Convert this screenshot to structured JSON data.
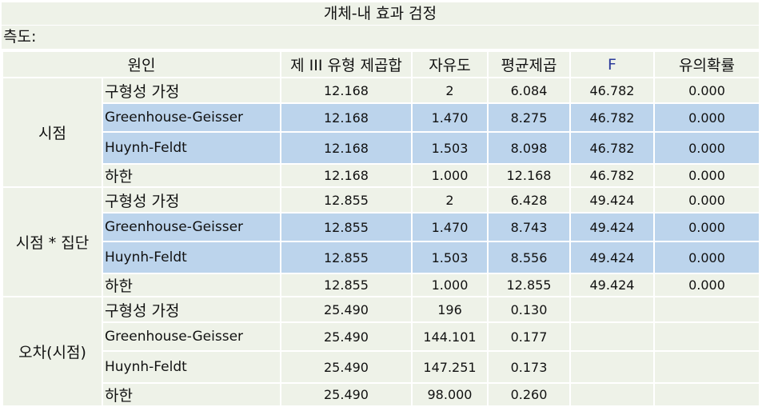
{
  "title": "개체-내 효과 검정",
  "measure_label": "측도:",
  "headers": [
    "원인",
    "제 III 유형 제곱합",
    "자유도",
    "평균제곱",
    "F",
    "유의확률"
  ],
  "groups": [
    {
      "name": "시점",
      "rows": [
        {
          "effect": "구형성 가정",
          "ss": "12.168",
          "df": "2",
          "ms": "6.084",
          "f": "46.782",
          "sig": "0.000",
          "highlight": false,
          "script": "ko"
        },
        {
          "effect": "Greenhouse-Geisser",
          "ss": "12.168",
          "df": "1.470",
          "ms": "8.275",
          "f": "46.782",
          "sig": "0.000",
          "highlight": true,
          "script": "latin"
        },
        {
          "effect": "Huynh-Feldt",
          "ss": "12.168",
          "df": "1.503",
          "ms": "8.098",
          "f": "46.782",
          "sig": "0.000",
          "highlight": true,
          "script": "latin"
        },
        {
          "effect": "하한",
          "ss": "12.168",
          "df": "1.000",
          "ms": "12.168",
          "f": "46.782",
          "sig": "0.000",
          "highlight": false,
          "script": "ko"
        }
      ]
    },
    {
      "name": "시점 * 집단",
      "rows": [
        {
          "effect": "구형성 가정",
          "ss": "12.855",
          "df": "2",
          "ms": "6.428",
          "f": "49.424",
          "sig": "0.000",
          "highlight": false,
          "script": "ko"
        },
        {
          "effect": "Greenhouse-Geisser",
          "ss": "12.855",
          "df": "1.470",
          "ms": "8.743",
          "f": "49.424",
          "sig": "0.000",
          "highlight": true,
          "script": "latin"
        },
        {
          "effect": "Huynh-Feldt",
          "ss": "12.855",
          "df": "1.503",
          "ms": "8.556",
          "f": "49.424",
          "sig": "0.000",
          "highlight": true,
          "script": "latin"
        },
        {
          "effect": "하한",
          "ss": "12.855",
          "df": "1.000",
          "ms": "12.855",
          "f": "49.424",
          "sig": "0.000",
          "highlight": false,
          "script": "ko"
        }
      ]
    },
    {
      "name": "오차(시점)",
      "rows": [
        {
          "effect": "구형성 가정",
          "ss": "25.490",
          "df": "196",
          "ms": "0.130",
          "f": "",
          "sig": "",
          "highlight": false,
          "script": "ko"
        },
        {
          "effect": "Greenhouse-Geisser",
          "ss": "25.490",
          "df": "144.101",
          "ms": "0.177",
          "f": "",
          "sig": "",
          "highlight": false,
          "script": "latin"
        },
        {
          "effect": "Huynh-Feldt",
          "ss": "25.490",
          "df": "147.251",
          "ms": "0.173",
          "f": "",
          "sig": "",
          "highlight": false,
          "script": "latin"
        },
        {
          "effect": "하한",
          "ss": "25.490",
          "df": "98.000",
          "ms": "0.260",
          "f": "",
          "sig": "",
          "highlight": false,
          "script": "ko"
        }
      ]
    }
  ],
  "colors": {
    "panel": "#eef2e8",
    "highlight": "#bcd4ec",
    "f_header": "#2b3a9a"
  }
}
